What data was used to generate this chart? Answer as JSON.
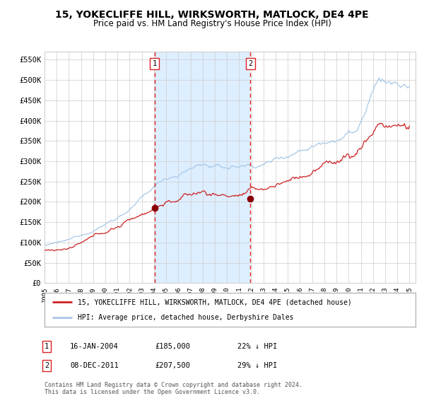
{
  "title": "15, YOKECLIFFE HILL, WIRKSWORTH, MATLOCK, DE4 4PE",
  "subtitle": "Price paid vs. HM Land Registry's House Price Index (HPI)",
  "title_fontsize": 10,
  "subtitle_fontsize": 8.5,
  "ylim": [
    0,
    570000
  ],
  "yticks": [
    0,
    50000,
    100000,
    150000,
    200000,
    250000,
    300000,
    350000,
    400000,
    450000,
    500000,
    550000
  ],
  "ytick_labels": [
    "£0",
    "£50K",
    "£100K",
    "£150K",
    "£200K",
    "£250K",
    "£300K",
    "£350K",
    "£400K",
    "£450K",
    "£500K",
    "£550K"
  ],
  "hpi_color": "#a8c8e8",
  "price_color": "#cc2222",
  "shade_color": "#ddeeff",
  "vline_color": "#dd2222",
  "marker_color": "#880000",
  "sale1_date_num": 2004.04,
  "sale1_price": 185000,
  "sale1_label": "1",
  "sale1_date_str": "16-JAN-2004",
  "sale1_pct": "22% ↓ HPI",
  "sale2_date_num": 2011.93,
  "sale2_price": 207500,
  "sale2_label": "2",
  "sale2_date_str": "08-DEC-2011",
  "sale2_pct": "29% ↓ HPI",
  "legend_line1": "15, YOKECLIFFE HILL, WIRKSWORTH, MATLOCK, DE4 4PE (detached house)",
  "legend_line2": "HPI: Average price, detached house, Derbyshire Dales",
  "footer1": "Contains HM Land Registry data © Crown copyright and database right 2024.",
  "footer2": "This data is licensed under the Open Government Licence v3.0.",
  "background_color": "#ffffff",
  "plot_bg_color": "#ffffff",
  "grid_color": "#cccccc"
}
